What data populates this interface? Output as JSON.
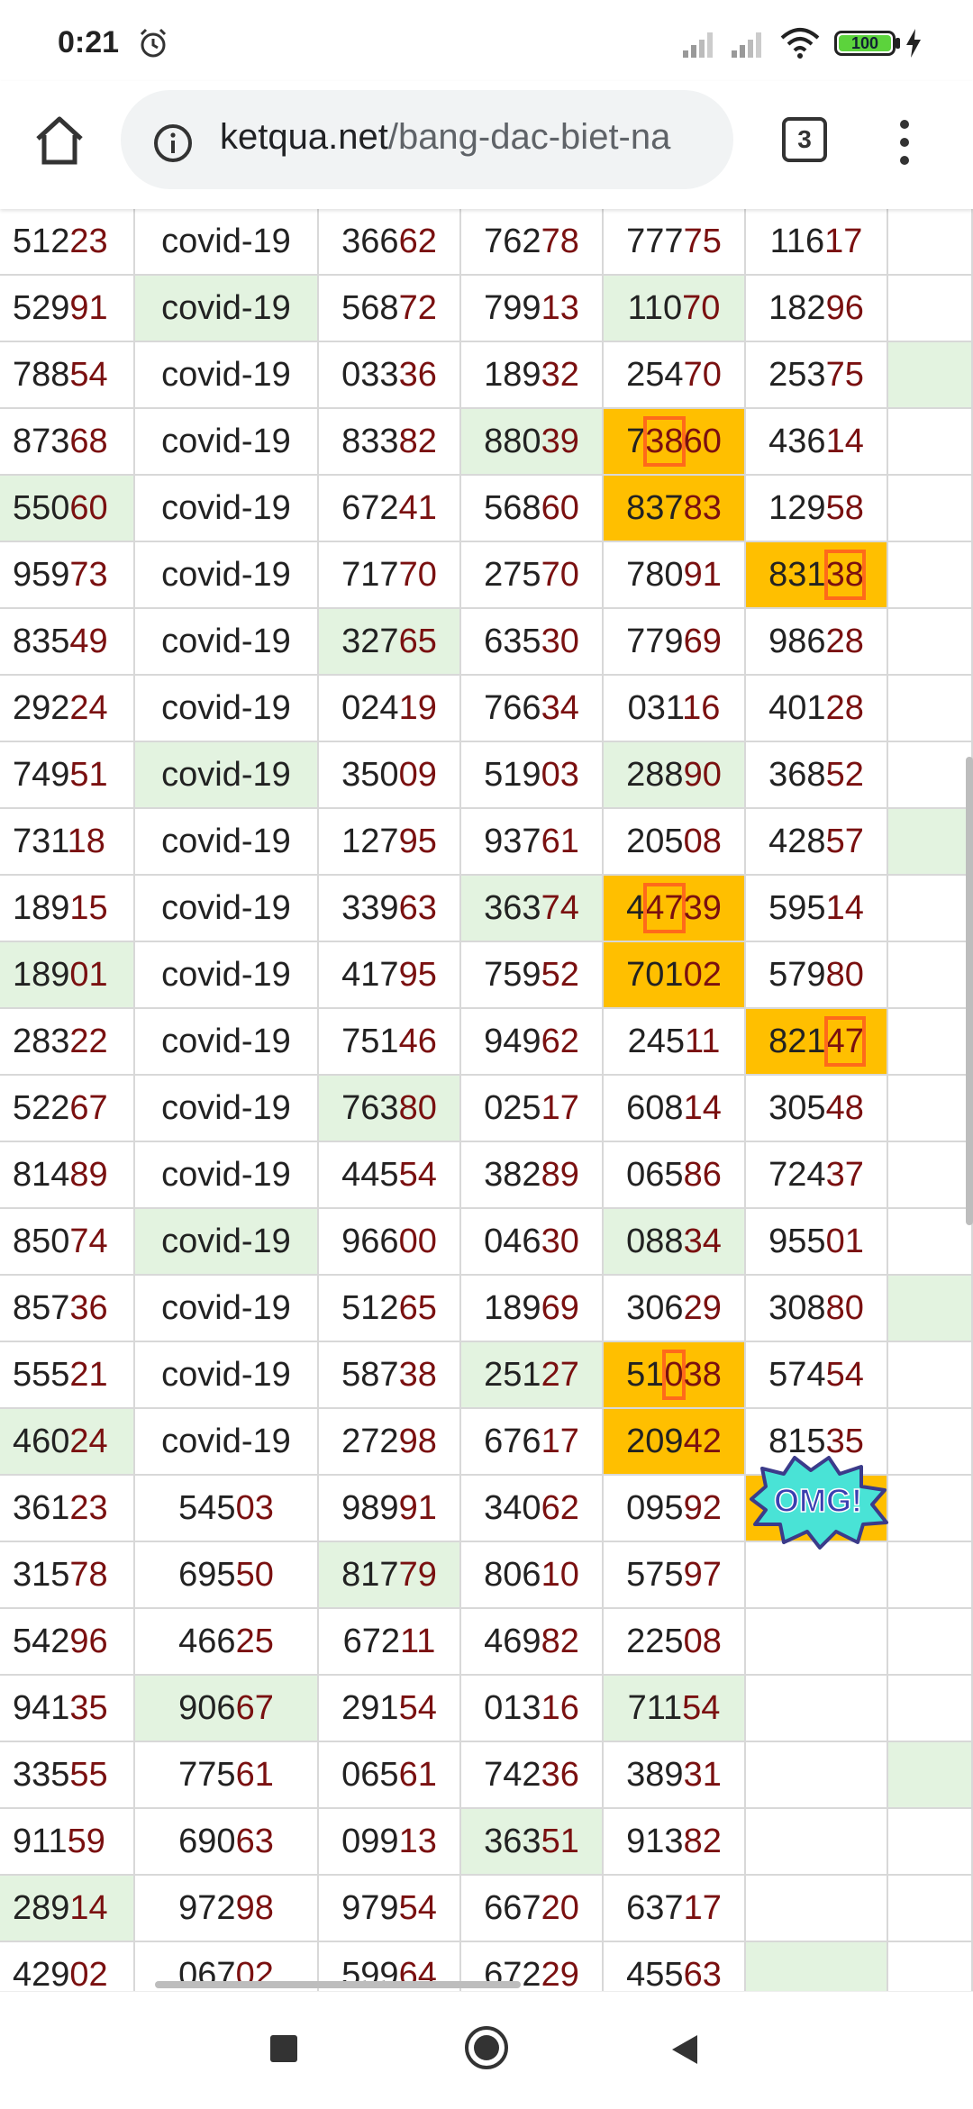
{
  "status_bar": {
    "time": "0:21",
    "battery": "100"
  },
  "browser": {
    "url_domain": "ketqua.net",
    "url_path": "/bang-dac-biet-na",
    "tab_count": "3"
  },
  "table": {
    "rows": [
      {
        "cells": [
          {
            "head": "512",
            "tail": "23"
          },
          {
            "head": "covid-19",
            "tail": ""
          },
          {
            "head": "366",
            "tail": "62"
          },
          {
            "head": "762",
            "tail": "78"
          },
          {
            "head": "777",
            "tail": "75"
          },
          {
            "head": "116",
            "tail": "17"
          },
          {
            "head": "",
            "tail": ""
          }
        ]
      },
      {
        "cells": [
          {
            "head": "529",
            "tail": "91"
          },
          {
            "head": "covid-19",
            "tail": "",
            "green": true
          },
          {
            "head": "568",
            "tail": "72"
          },
          {
            "head": "799",
            "tail": "13"
          },
          {
            "head": "110",
            "tail": "70",
            "green": true
          },
          {
            "head": "182",
            "tail": "96"
          },
          {
            "head": "",
            "tail": ""
          }
        ]
      },
      {
        "cells": [
          {
            "head": "788",
            "tail": "54"
          },
          {
            "head": "covid-19",
            "tail": ""
          },
          {
            "head": "033",
            "tail": "36"
          },
          {
            "head": "189",
            "tail": "32"
          },
          {
            "head": "254",
            "tail": "70"
          },
          {
            "head": "253",
            "tail": "75"
          },
          {
            "head": "",
            "tail": "",
            "green": true
          }
        ]
      },
      {
        "cells": [
          {
            "head": "873",
            "tail": "68"
          },
          {
            "head": "covid-19",
            "tail": ""
          },
          {
            "head": "833",
            "tail": "82"
          },
          {
            "head": "880",
            "tail": "39",
            "green": true
          },
          {
            "pre": "7",
            "hl": "38",
            "post": "60",
            "orange": true
          },
          {
            "head": "436",
            "tail": "14"
          },
          {
            "head": "",
            "tail": ""
          }
        ]
      },
      {
        "cells": [
          {
            "head": "550",
            "tail": "60",
            "green": true
          },
          {
            "head": "covid-19",
            "tail": ""
          },
          {
            "head": "672",
            "tail": "41"
          },
          {
            "head": "568",
            "tail": "60"
          },
          {
            "head": "837",
            "tail": "83",
            "orange": true
          },
          {
            "head": "129",
            "tail": "58"
          },
          {
            "head": "",
            "tail": ""
          }
        ]
      },
      {
        "cells": [
          {
            "head": "959",
            "tail": "73"
          },
          {
            "head": "covid-19",
            "tail": ""
          },
          {
            "head": "717",
            "tail": "70"
          },
          {
            "head": "275",
            "tail": "70"
          },
          {
            "head": "780",
            "tail": "91"
          },
          {
            "pre": "831",
            "hl": "38",
            "post": "",
            "orange": true
          },
          {
            "head": "",
            "tail": ""
          }
        ]
      },
      {
        "cells": [
          {
            "head": "835",
            "tail": "49"
          },
          {
            "head": "covid-19",
            "tail": ""
          },
          {
            "head": "327",
            "tail": "65",
            "green": true
          },
          {
            "head": "635",
            "tail": "30"
          },
          {
            "head": "779",
            "tail": "69"
          },
          {
            "head": "986",
            "tail": "28"
          },
          {
            "head": "",
            "tail": ""
          }
        ]
      },
      {
        "cells": [
          {
            "head": "292",
            "tail": "24"
          },
          {
            "head": "covid-19",
            "tail": ""
          },
          {
            "head": "024",
            "tail": "19"
          },
          {
            "head": "766",
            "tail": "34"
          },
          {
            "head": "031",
            "tail": "16"
          },
          {
            "head": "401",
            "tail": "28"
          },
          {
            "head": "",
            "tail": ""
          }
        ]
      },
      {
        "cells": [
          {
            "head": "749",
            "tail": "51"
          },
          {
            "head": "covid-19",
            "tail": "",
            "green": true
          },
          {
            "head": "350",
            "tail": "09"
          },
          {
            "head": "519",
            "tail": "03"
          },
          {
            "head": "288",
            "tail": "90",
            "green": true
          },
          {
            "head": "368",
            "tail": "52"
          },
          {
            "head": "",
            "tail": ""
          }
        ]
      },
      {
        "cells": [
          {
            "head": "731",
            "tail": "18"
          },
          {
            "head": "covid-19",
            "tail": ""
          },
          {
            "head": "127",
            "tail": "95"
          },
          {
            "head": "937",
            "tail": "61"
          },
          {
            "head": "205",
            "tail": "08"
          },
          {
            "head": "428",
            "tail": "57"
          },
          {
            "head": "",
            "tail": "",
            "green": true
          }
        ]
      },
      {
        "cells": [
          {
            "head": "189",
            "tail": "15"
          },
          {
            "head": "covid-19",
            "tail": ""
          },
          {
            "head": "339",
            "tail": "63"
          },
          {
            "head": "363",
            "tail": "74",
            "green": true
          },
          {
            "pre": "4",
            "hl": "47",
            "post": "39",
            "orange": true
          },
          {
            "head": "595",
            "tail": "14"
          },
          {
            "head": "",
            "tail": ""
          }
        ]
      },
      {
        "cells": [
          {
            "head": "189",
            "tail": "01",
            "green": true
          },
          {
            "head": "covid-19",
            "tail": ""
          },
          {
            "head": "417",
            "tail": "95"
          },
          {
            "head": "759",
            "tail": "52"
          },
          {
            "head": "701",
            "tail": "02",
            "orange": true
          },
          {
            "head": "579",
            "tail": "80"
          },
          {
            "head": "",
            "tail": ""
          }
        ]
      },
      {
        "cells": [
          {
            "head": "283",
            "tail": "22"
          },
          {
            "head": "covid-19",
            "tail": ""
          },
          {
            "head": "751",
            "tail": "46"
          },
          {
            "head": "949",
            "tail": "62"
          },
          {
            "head": "245",
            "tail": "11"
          },
          {
            "pre": "821",
            "hl": "47",
            "post": "",
            "orange": true
          },
          {
            "head": "",
            "tail": ""
          }
        ]
      },
      {
        "cells": [
          {
            "head": "522",
            "tail": "67"
          },
          {
            "head": "covid-19",
            "tail": ""
          },
          {
            "head": "763",
            "tail": "80",
            "green": true
          },
          {
            "head": "025",
            "tail": "17"
          },
          {
            "head": "608",
            "tail": "14"
          },
          {
            "head": "305",
            "tail": "48"
          },
          {
            "head": "",
            "tail": ""
          }
        ]
      },
      {
        "cells": [
          {
            "head": "814",
            "tail": "89"
          },
          {
            "head": "covid-19",
            "tail": ""
          },
          {
            "head": "445",
            "tail": "54"
          },
          {
            "head": "382",
            "tail": "89"
          },
          {
            "head": "065",
            "tail": "86"
          },
          {
            "head": "724",
            "tail": "37"
          },
          {
            "head": "",
            "tail": ""
          }
        ]
      },
      {
        "cells": [
          {
            "head": "850",
            "tail": "74"
          },
          {
            "head": "covid-19",
            "tail": "",
            "green": true
          },
          {
            "head": "966",
            "tail": "00"
          },
          {
            "head": "046",
            "tail": "30"
          },
          {
            "head": "088",
            "tail": "34",
            "green": true
          },
          {
            "head": "955",
            "tail": "01"
          },
          {
            "head": "",
            "tail": ""
          }
        ]
      },
      {
        "cells": [
          {
            "head": "857",
            "tail": "36"
          },
          {
            "head": "covid-19",
            "tail": ""
          },
          {
            "head": "512",
            "tail": "65"
          },
          {
            "head": "189",
            "tail": "69"
          },
          {
            "head": "306",
            "tail": "29"
          },
          {
            "head": "308",
            "tail": "80"
          },
          {
            "head": "",
            "tail": "",
            "green": true
          }
        ]
      },
      {
        "cells": [
          {
            "head": "555",
            "tail": "21"
          },
          {
            "head": "covid-19",
            "tail": ""
          },
          {
            "head": "587",
            "tail": "38"
          },
          {
            "head": "251",
            "tail": "27",
            "green": true
          },
          {
            "pre": "51",
            "hl": "0",
            "post": "38",
            "orange": true
          },
          {
            "head": "574",
            "tail": "54"
          },
          {
            "head": "",
            "tail": ""
          }
        ]
      },
      {
        "cells": [
          {
            "head": "460",
            "tail": "24",
            "green": true
          },
          {
            "head": "covid-19",
            "tail": ""
          },
          {
            "head": "272",
            "tail": "98"
          },
          {
            "head": "676",
            "tail": "17"
          },
          {
            "head": "209",
            "tail": "42",
            "orange": true
          },
          {
            "head": "815",
            "tail": "35"
          },
          {
            "head": "",
            "tail": ""
          }
        ]
      },
      {
        "cells": [
          {
            "head": "361",
            "tail": "23"
          },
          {
            "head": "545",
            "tail": "03"
          },
          {
            "head": "989",
            "tail": "91"
          },
          {
            "head": "340",
            "tail": "62"
          },
          {
            "head": "095",
            "tail": "92"
          },
          {
            "head": "",
            "tail": "",
            "orange": true
          },
          {
            "head": "",
            "tail": ""
          }
        ]
      },
      {
        "cells": [
          {
            "head": "315",
            "tail": "78"
          },
          {
            "head": "695",
            "tail": "50"
          },
          {
            "head": "817",
            "tail": "79",
            "green": true
          },
          {
            "head": "806",
            "tail": "10"
          },
          {
            "head": "575",
            "tail": "97"
          },
          {
            "head": "",
            "tail": ""
          },
          {
            "head": "",
            "tail": ""
          }
        ]
      },
      {
        "cells": [
          {
            "head": "542",
            "tail": "96"
          },
          {
            "head": "466",
            "tail": "25"
          },
          {
            "head": "672",
            "tail": "11"
          },
          {
            "head": "469",
            "tail": "82"
          },
          {
            "head": "225",
            "tail": "08"
          },
          {
            "head": "",
            "tail": ""
          },
          {
            "head": "",
            "tail": ""
          }
        ]
      },
      {
        "cells": [
          {
            "head": "941",
            "tail": "35"
          },
          {
            "head": "906",
            "tail": "67",
            "green": true
          },
          {
            "head": "291",
            "tail": "54"
          },
          {
            "head": "013",
            "tail": "16"
          },
          {
            "head": "711",
            "tail": "54",
            "green": true
          },
          {
            "head": "",
            "tail": ""
          },
          {
            "head": "",
            "tail": ""
          }
        ]
      },
      {
        "cells": [
          {
            "head": "335",
            "tail": "55"
          },
          {
            "head": "775",
            "tail": "61"
          },
          {
            "head": "065",
            "tail": "61"
          },
          {
            "head": "742",
            "tail": "36"
          },
          {
            "head": "389",
            "tail": "31"
          },
          {
            "head": "",
            "tail": ""
          },
          {
            "head": "",
            "tail": "",
            "green": true
          }
        ]
      },
      {
        "cells": [
          {
            "head": "911",
            "tail": "59"
          },
          {
            "head": "690",
            "tail": "63"
          },
          {
            "head": "099",
            "tail": "13"
          },
          {
            "head": "363",
            "tail": "51",
            "green": true
          },
          {
            "head": "913",
            "tail": "82"
          },
          {
            "head": "",
            "tail": ""
          },
          {
            "head": "",
            "tail": ""
          }
        ]
      },
      {
        "cells": [
          {
            "head": "289",
            "tail": "14",
            "green": true
          },
          {
            "head": "972",
            "tail": "98"
          },
          {
            "head": "979",
            "tail": "54"
          },
          {
            "head": "667",
            "tail": "20"
          },
          {
            "head": "637",
            "tail": "17"
          },
          {
            "head": "",
            "tail": ""
          },
          {
            "head": "",
            "tail": ""
          }
        ]
      },
      {
        "cells": [
          {
            "head": "429",
            "tail": "02"
          },
          {
            "head": "067",
            "tail": "02"
          },
          {
            "head": "599",
            "tail": "64"
          },
          {
            "head": "672",
            "tail": "29"
          },
          {
            "head": "455",
            "tail": "63"
          },
          {
            "head": "",
            "tail": "",
            "green": true
          },
          {
            "head": "",
            "tail": ""
          }
        ]
      }
    ]
  },
  "sticker": {
    "text": "OMG!"
  }
}
